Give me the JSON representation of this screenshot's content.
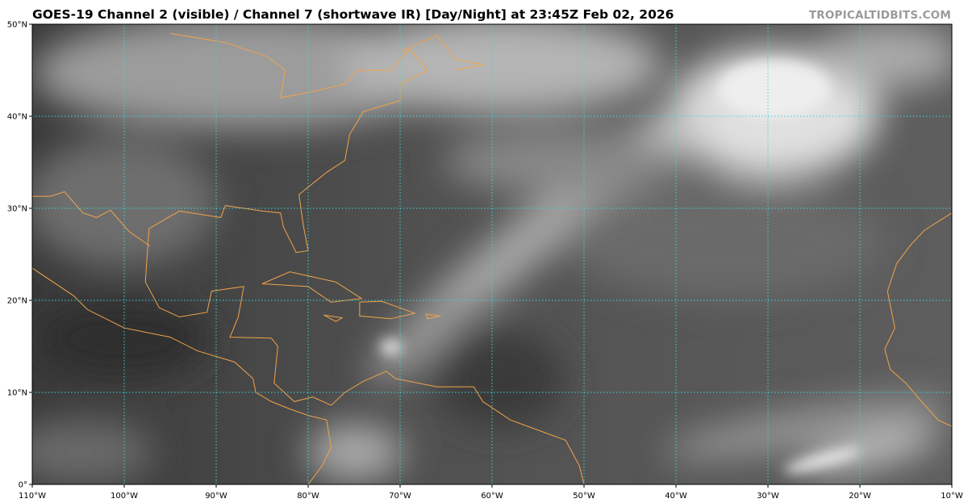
{
  "header": {
    "title": "GOES-19 Channel 2 (visible) / Channel 7 (shortwave IR) [Day/Night] at 23:45Z Feb 02, 2026",
    "watermark": "TROPICALTIDBITS.COM"
  },
  "map": {
    "extent": {
      "lon": [
        -110,
        -10
      ],
      "lat": [
        0,
        50
      ]
    },
    "gridline_color": "#3fd6d6",
    "coastline_color": "#f2a34a",
    "lon_labels": [
      "110°W",
      "100°W",
      "90°W",
      "80°W",
      "70°W",
      "60°W",
      "50°W",
      "40°W",
      "30°W",
      "20°W",
      "10°W"
    ],
    "lat_labels": [
      "0°",
      "10°N",
      "20°N",
      "30°N",
      "40°N",
      "50°N"
    ]
  }
}
